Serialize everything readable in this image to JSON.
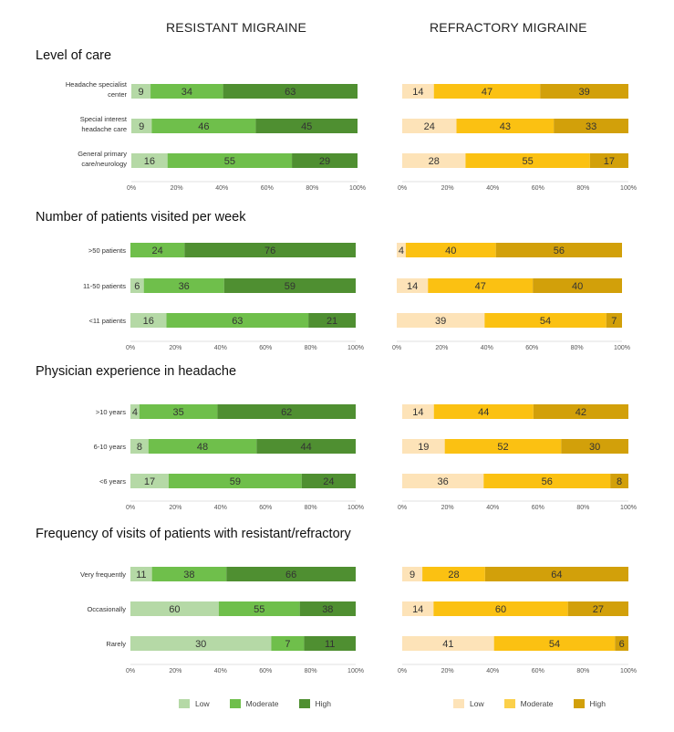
{
  "column_titles": {
    "resistant": "RESISTANT MIGRAINE",
    "refractory": "REFRACTORY MIGRAINE"
  },
  "legend": {
    "low": "Low",
    "moderate": "Moderate",
    "high": "High"
  },
  "colors": {
    "resistant": {
      "low": "#b5d9a6",
      "moderate": "#6fbf4b",
      "high": "#4f8f31"
    },
    "refractory": {
      "low": "#fde3b8",
      "moderate": "#fbc112",
      "high": "#d2a00a"
    }
  },
  "axis_ticks": [
    "0%",
    "20%",
    "40%",
    "60%",
    "80%",
    "100%"
  ],
  "chart_data": [
    {
      "type": "bar",
      "orientation": "horizontal",
      "stacked": true,
      "title": "Level of care",
      "categories": [
        "Headache specialist center",
        "Special interest headache care",
        "General primary care/neurology"
      ],
      "category_lines": [
        [
          "Headache specialist",
          "center"
        ],
        [
          "Special interest",
          "headache care"
        ],
        [
          "General primary",
          "care/neurology"
        ]
      ],
      "resistant": [
        {
          "name": "Low",
          "values": [
            9,
            9,
            16
          ]
        },
        {
          "name": "Moderate",
          "values": [
            34,
            46,
            55
          ]
        },
        {
          "name": "High",
          "values": [
            63,
            45,
            29
          ]
        }
      ],
      "refractory": [
        {
          "name": "Low",
          "values": [
            14,
            24,
            28
          ]
        },
        {
          "name": "Moderate",
          "values": [
            47,
            43,
            55
          ]
        },
        {
          "name": "High",
          "values": [
            39,
            33,
            17
          ]
        }
      ],
      "xlim": [
        0,
        100
      ]
    },
    {
      "type": "bar",
      "orientation": "horizontal",
      "stacked": true,
      "title": "Number of patients visited per week",
      "categories": [
        ">50 patients",
        "11-50 patients",
        "<11 patients"
      ],
      "category_lines": [
        [
          ">50 patients"
        ],
        [
          "11-50 patients"
        ],
        [
          "<11 patients"
        ]
      ],
      "resistant": [
        {
          "name": "Low",
          "values": [
            0,
            6,
            16
          ]
        },
        {
          "name": "Moderate",
          "values": [
            24,
            36,
            63
          ]
        },
        {
          "name": "High",
          "values": [
            76,
            59,
            21
          ]
        }
      ],
      "refractory": [
        {
          "name": "Low",
          "values": [
            4,
            14,
            39
          ]
        },
        {
          "name": "Moderate",
          "values": [
            40,
            47,
            54
          ]
        },
        {
          "name": "High",
          "values": [
            56,
            40,
            7
          ]
        }
      ],
      "xlim": [
        0,
        100
      ]
    },
    {
      "type": "bar",
      "orientation": "horizontal",
      "stacked": true,
      "title": "Physician experience in headache",
      "categories": [
        ">10 years",
        "6-10 years",
        "<6 years"
      ],
      "category_lines": [
        [
          ">10 years"
        ],
        [
          "6-10 years"
        ],
        [
          "<6 years"
        ]
      ],
      "resistant": [
        {
          "name": "Low",
          "values": [
            4,
            8,
            17
          ]
        },
        {
          "name": "Moderate",
          "values": [
            35,
            48,
            59
          ]
        },
        {
          "name": "High",
          "values": [
            62,
            44,
            24
          ]
        }
      ],
      "refractory": [
        {
          "name": "Low",
          "values": [
            14,
            19,
            36
          ]
        },
        {
          "name": "Moderate",
          "values": [
            44,
            52,
            56
          ]
        },
        {
          "name": "High",
          "values": [
            42,
            30,
            8
          ]
        }
      ],
      "xlim": [
        0,
        100
      ]
    },
    {
      "type": "bar",
      "orientation": "horizontal",
      "stacked": true,
      "title": "Frequency of visits of patients with resistant/refractory",
      "categories": [
        "Very frequently",
        "Occasionally",
        "Rarely"
      ],
      "category_lines": [
        [
          "Very frequently"
        ],
        [
          "Occasionally"
        ],
        [
          "Rarely"
        ]
      ],
      "resistant": [
        {
          "name": "Low",
          "values": [
            11,
            60,
            30
          ]
        },
        {
          "name": "Moderate",
          "values": [
            38,
            55,
            7
          ]
        },
        {
          "name": "High",
          "values": [
            66,
            38,
            11
          ]
        }
      ],
      "refractory": [
        {
          "name": "Low",
          "values": [
            9,
            14,
            41
          ]
        },
        {
          "name": "Moderate",
          "values": [
            28,
            60,
            54
          ]
        },
        {
          "name": "High",
          "values": [
            64,
            27,
            6
          ]
        }
      ],
      "xlim": [
        0,
        100
      ]
    }
  ]
}
